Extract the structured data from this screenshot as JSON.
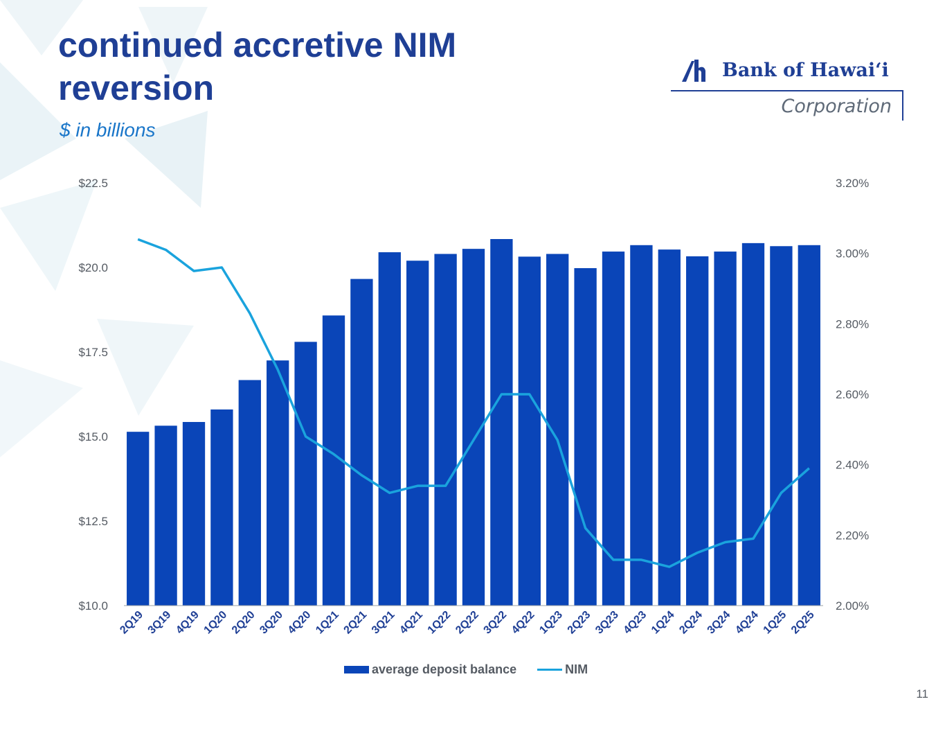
{
  "title": {
    "line1": "continued accretive NIM",
    "line2": "reversion"
  },
  "subtitle": "$ in billions",
  "logo": {
    "name": "Bank of Hawaiʻi",
    "corp": "Corporation"
  },
  "page_number": "11",
  "colors": {
    "bar": "#0a45b8",
    "line": "#1aa3dd",
    "title": "#1f3f95",
    "subtitle": "#1a76c9",
    "axis_text": "#555b63"
  },
  "chart_data": {
    "type": "bar",
    "title": "",
    "categories": [
      "2Q19",
      "3Q19",
      "4Q19",
      "1Q20",
      "2Q20",
      "3Q20",
      "4Q20",
      "1Q21",
      "2Q21",
      "3Q21",
      "4Q21",
      "1Q22",
      "2Q22",
      "3Q22",
      "4Q22",
      "1Q23",
      "2Q23",
      "3Q23",
      "4Q23",
      "1Q24",
      "2Q24",
      "3Q24",
      "4Q24",
      "1Q25",
      "2Q25"
    ],
    "series": [
      {
        "name": "average deposit balance",
        "type": "bar",
        "axis": "left",
        "values": [
          15.14,
          15.32,
          15.43,
          15.8,
          16.67,
          17.25,
          17.8,
          18.58,
          19.66,
          20.45,
          20.2,
          20.4,
          20.55,
          20.84,
          20.32,
          20.4,
          19.98,
          20.47,
          20.66,
          20.53,
          20.33,
          20.47,
          20.72,
          20.63,
          20.66
        ]
      },
      {
        "name": "NIM",
        "type": "line",
        "axis": "right",
        "values": [
          3.04,
          3.01,
          2.95,
          2.96,
          2.83,
          2.67,
          2.48,
          2.43,
          2.37,
          2.32,
          2.34,
          2.34,
          2.47,
          2.6,
          2.6,
          2.47,
          2.22,
          2.13,
          2.13,
          2.11,
          2.15,
          2.18,
          2.19,
          2.32,
          2.39
        ]
      }
    ],
    "y_left": {
      "min": 10.0,
      "max": 22.5,
      "ticks": [
        "$10.0",
        "$12.5",
        "$15.0",
        "$17.5",
        "$20.0",
        "$22.5"
      ]
    },
    "y_right": {
      "min": 2.0,
      "max": 3.2,
      "ticks": [
        "2.00%",
        "2.20%",
        "2.40%",
        "2.60%",
        "2.80%",
        "3.00%",
        "3.20%"
      ]
    },
    "legend": [
      "average deposit balance",
      "NIM"
    ],
    "legend_position": "bottom",
    "grid": false
  }
}
